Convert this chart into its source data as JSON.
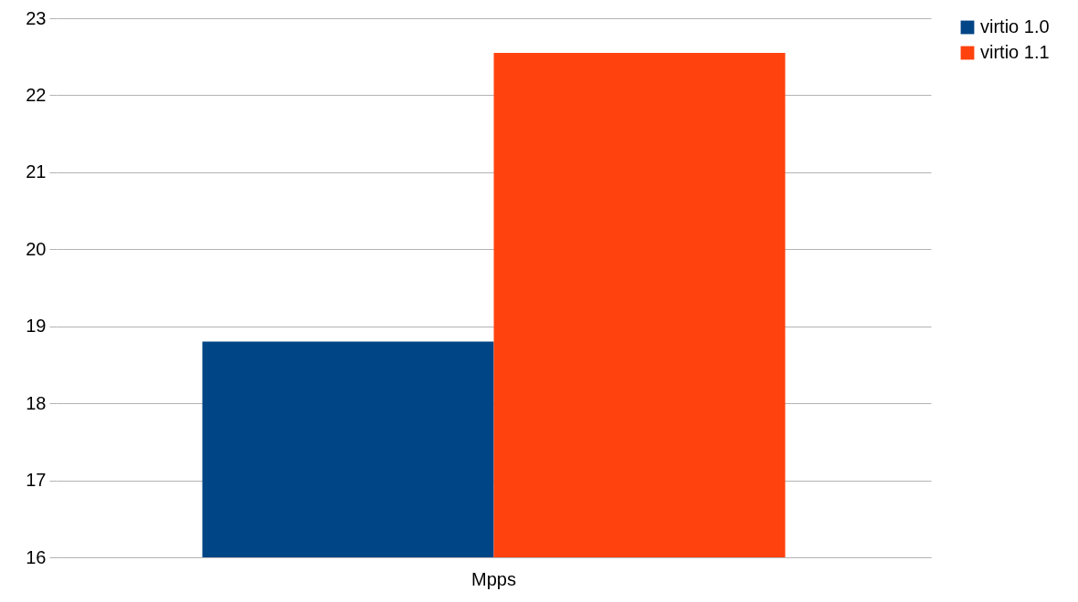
{
  "chart_data": {
    "type": "bar",
    "categories": [
      "Mpps"
    ],
    "series": [
      {
        "name": "virtio 1.0",
        "color": "#004586",
        "values": [
          18.8
        ]
      },
      {
        "name": "virtio 1.1",
        "color": "#ff420e",
        "values": [
          22.55
        ]
      }
    ],
    "ylim": [
      16,
      23
    ],
    "yticks": [
      16,
      17,
      18,
      19,
      20,
      21,
      22,
      23
    ],
    "grid": "y",
    "legend": "right"
  }
}
